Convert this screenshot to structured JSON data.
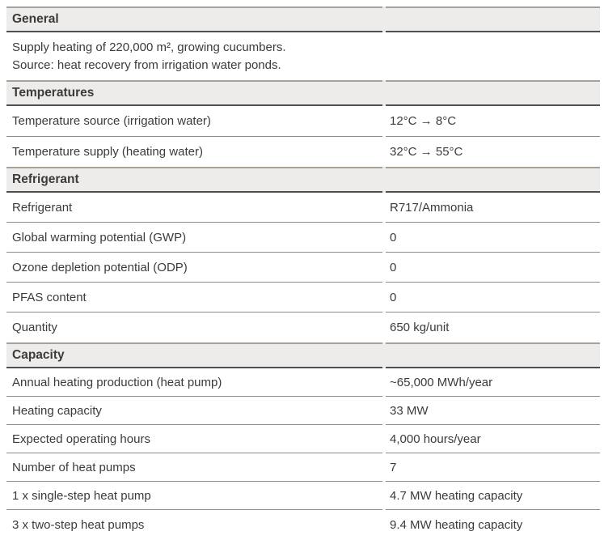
{
  "colors": {
    "header_band_bg": "#edecea",
    "section_top_border": "#a7a199",
    "section_bottom_border": "#504f4d",
    "row_separator": "#8b8b8b",
    "text": "#3b3b3b"
  },
  "document": {
    "sections": [
      {
        "title": "General",
        "description": [
          "Supply heating of 220,000 m², growing cucumbers.",
          "Source: heat recovery from irrigation water ponds."
        ],
        "rows": []
      },
      {
        "title": "Temperatures",
        "rows": [
          {
            "label": "Temperature source (irrigation water)",
            "value": "12°C → 8°C"
          },
          {
            "label": "Temperature supply (heating water)",
            "value": "32°C → 55°C"
          }
        ]
      },
      {
        "title": "Refrigerant",
        "rows": [
          {
            "label": "Refrigerant",
            "value": "R717/Ammonia"
          },
          {
            "label": "Global warming potential (GWP)",
            "value": "0"
          },
          {
            "label": "Ozone depletion potential (ODP)",
            "value": "0"
          },
          {
            "label": "PFAS content",
            "value": "0"
          },
          {
            "label": "Quantity",
            "value": "650 kg/unit"
          }
        ]
      },
      {
        "title": "Capacity",
        "rows": [
          {
            "label": "Annual heating production (heat pump)",
            "value": "~65,000 MWh/year"
          },
          {
            "label": "Heating capacity",
            "value": "33 MW"
          },
          {
            "label": "Expected operating hours",
            "value": "4,000 hours/year"
          },
          {
            "label": "Number of heat pumps",
            "value": "7"
          },
          {
            "label": "1 x single-step heat pump",
            "value": "4.7 MW heating capacity"
          },
          {
            "label": "3 x two-step heat pumps",
            "value": "9.4 MW heating capacity"
          }
        ]
      }
    ]
  }
}
